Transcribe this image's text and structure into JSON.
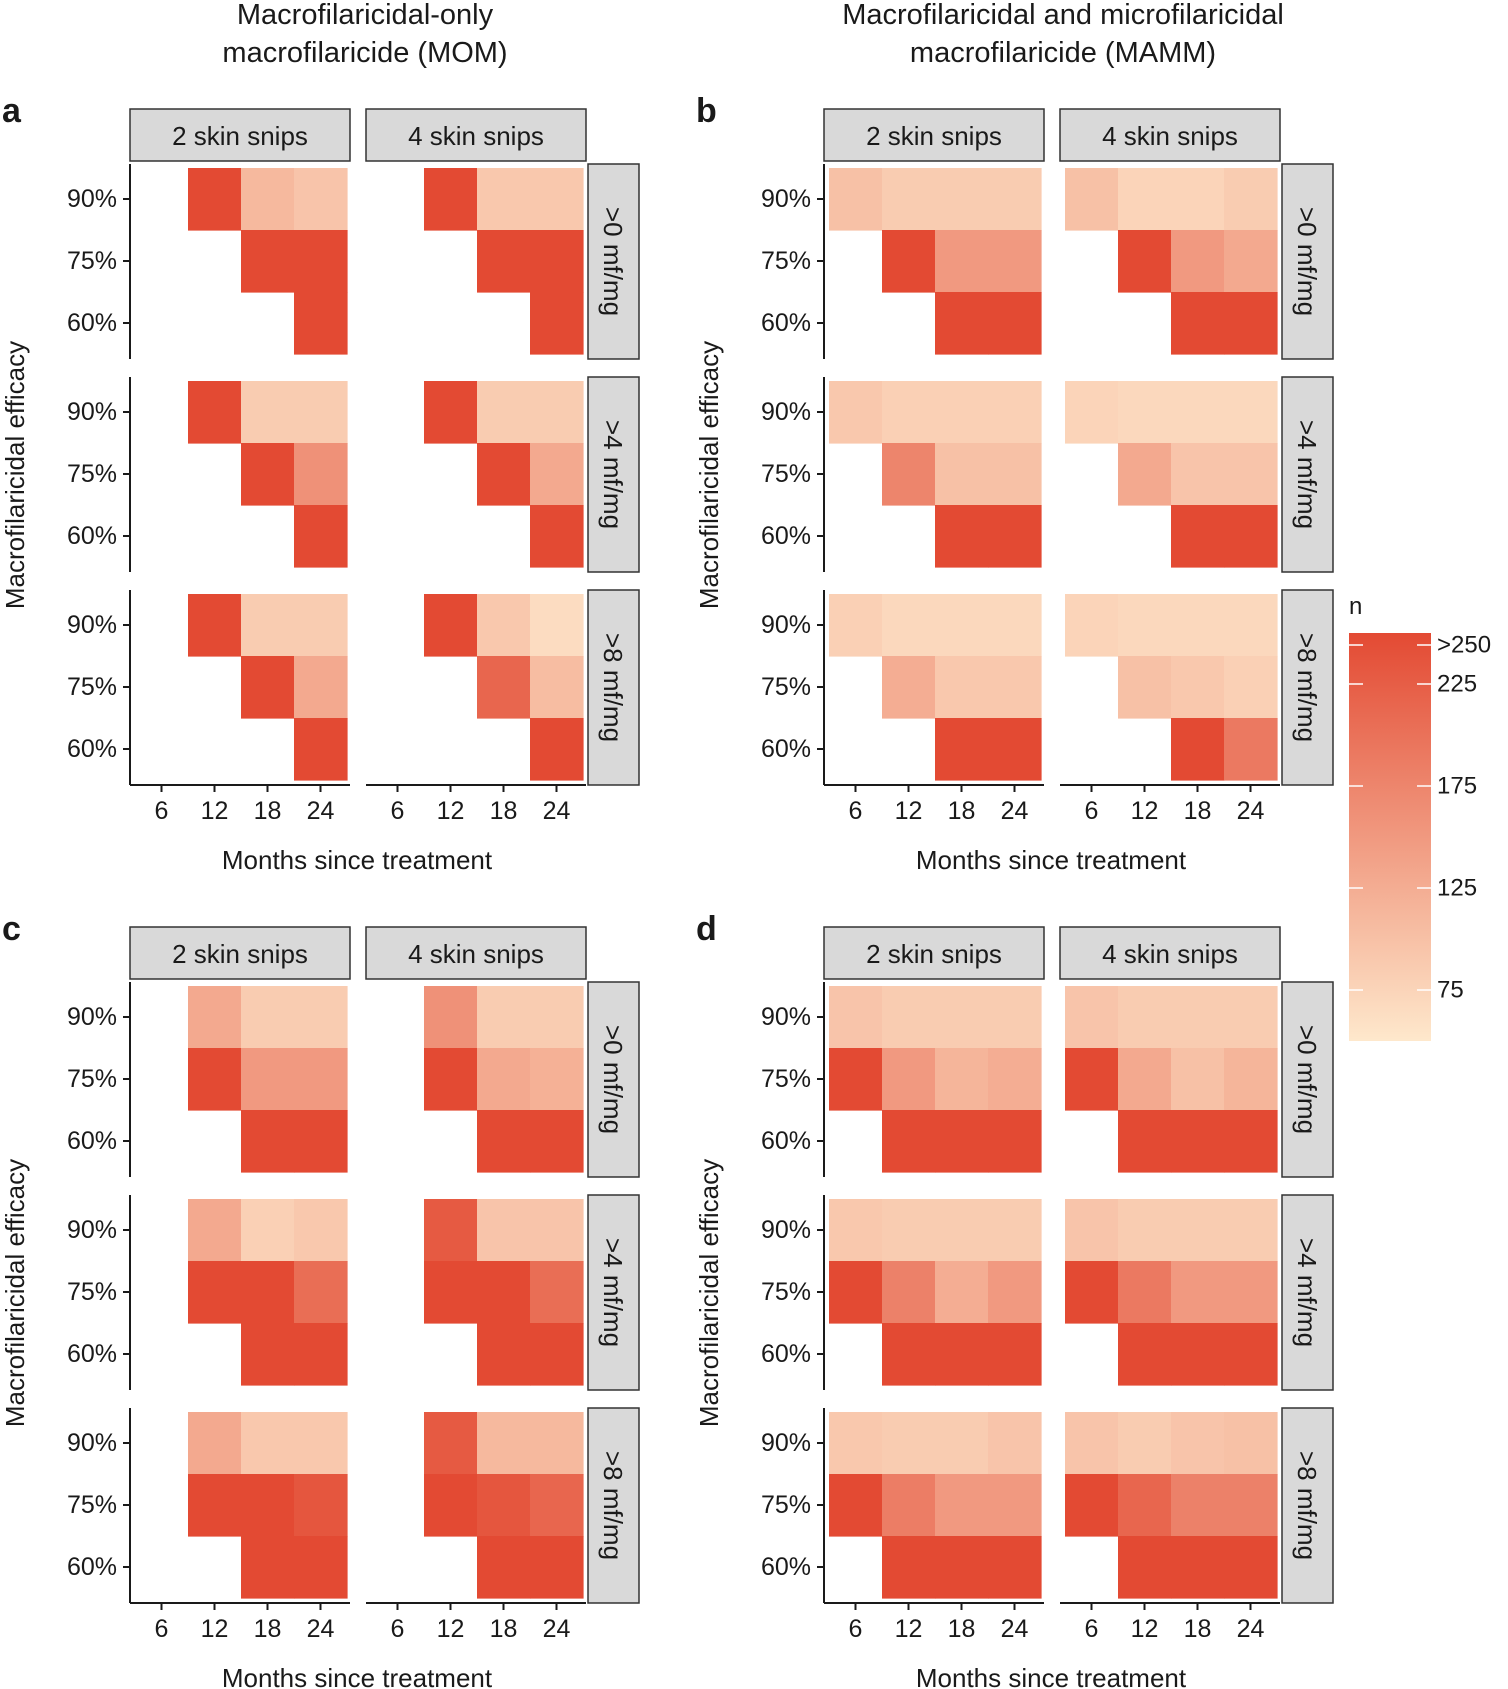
{
  "column_titles": [
    {
      "line1": "Macrofilaricidal-only",
      "line2": "macrofilaricide (MOM)"
    },
    {
      "line1": "Macrofilaricidal and microfilaricidal",
      "line2": "macrofilaricide (MAMM)"
    }
  ],
  "legend": {
    "title": "n",
    "labels": [
      ">250",
      "225",
      "175",
      "125",
      "75"
    ],
    "label_values": [
      250,
      225,
      175,
      125,
      75
    ],
    "range": [
      50,
      250
    ],
    "low_color": "#fee8cc",
    "high_color": "#e34a33"
  },
  "chart_data": [
    {
      "panel": "a",
      "type": "heatmap",
      "column_title": "Macrofilaricidal-only macrofilaricide (MOM)",
      "xlabel": "Months since treatment",
      "ylabel": "Macrofilaricidal efficacy",
      "x_categories": [
        "6",
        "12",
        "18",
        "24"
      ],
      "y_categories": [
        "90%",
        "75%",
        "60%"
      ],
      "facet_columns": [
        "2 skin snips",
        "4 skin snips"
      ],
      "facet_rows": [
        ">0 mf/mg",
        ">4 mf/mg",
        ">8 mf/mg"
      ],
      "value_note": "n (values estimated from colour; null = no cell drawn; 250 = >250)",
      "cells": [
        [
          [
            [
              null,
              250,
              110,
              95
            ],
            [
              null,
              null,
              250,
              250
            ],
            [
              null,
              null,
              null,
              250
            ]
          ],
          [
            [
              null,
              250,
              90,
              90
            ],
            [
              null,
              null,
              250,
              250
            ],
            [
              null,
              null,
              null,
              250
            ]
          ]
        ],
        [
          [
            [
              null,
              250,
              85,
              85
            ],
            [
              null,
              null,
              250,
              160
            ],
            [
              null,
              null,
              null,
              250
            ]
          ],
          [
            [
              null,
              250,
              85,
              85
            ],
            [
              null,
              null,
              250,
              130
            ],
            [
              null,
              null,
              null,
              250
            ]
          ]
        ],
        [
          [
            [
              null,
              250,
              85,
              85
            ],
            [
              null,
              null,
              250,
              130
            ],
            [
              null,
              null,
              null,
              250
            ]
          ],
          [
            [
              null,
              250,
              90,
              65
            ],
            [
              null,
              null,
              215,
              105
            ],
            [
              null,
              null,
              null,
              250
            ]
          ]
        ]
      ]
    },
    {
      "panel": "b",
      "type": "heatmap",
      "column_title": "Macrofilaricidal and microfilaricidal macrofilaricide (MAMM)",
      "xlabel": "Months since treatment",
      "ylabel": "Macrofilaricidal efficacy",
      "x_categories": [
        "6",
        "12",
        "18",
        "24"
      ],
      "y_categories": [
        "90%",
        "75%",
        "60%"
      ],
      "facet_columns": [
        "2 skin snips",
        "4 skin snips"
      ],
      "facet_rows": [
        ">0 mf/mg",
        ">4 mf/mg",
        ">8 mf/mg"
      ],
      "value_note": "n (values estimated from colour; null = no cell drawn; 250 = >250)",
      "cells": [
        [
          [
            [
              100,
              85,
              85,
              85
            ],
            [
              null,
              250,
              150,
              150
            ],
            [
              null,
              null,
              250,
              250
            ]
          ],
          [
            [
              100,
              75,
              75,
              85
            ],
            [
              null,
              250,
              150,
              130
            ],
            [
              null,
              null,
              250,
              250
            ]
          ]
        ],
        [
          [
            [
              90,
              80,
              80,
              80
            ],
            [
              null,
              175,
              100,
              100
            ],
            [
              null,
              null,
              250,
              250
            ]
          ],
          [
            [
              75,
              70,
              70,
              70
            ],
            [
              null,
              130,
              95,
              95
            ],
            [
              null,
              null,
              250,
              250
            ]
          ]
        ],
        [
          [
            [
              80,
              70,
              70,
              70
            ],
            [
              null,
              125,
              90,
              90
            ],
            [
              null,
              null,
              250,
              250
            ]
          ],
          [
            [
              75,
              70,
              70,
              70
            ],
            [
              null,
              100,
              90,
              80
            ],
            [
              null,
              null,
              250,
              190
            ]
          ]
        ]
      ]
    },
    {
      "panel": "c",
      "type": "heatmap",
      "column_title": "Macrofilaricidal-only macrofilaricide (MOM)",
      "xlabel": "Months since treatment",
      "ylabel": "Macrofilaricidal efficacy",
      "x_categories": [
        "6",
        "12",
        "18",
        "24"
      ],
      "y_categories": [
        "90%",
        "75%",
        "60%"
      ],
      "facet_columns": [
        "2 skin snips",
        "4 skin snips"
      ],
      "facet_rows": [
        ">0 mf/mg",
        ">4 mf/mg",
        ">8 mf/mg"
      ],
      "value_note": "n (values estimated from colour; null = no cell drawn; 250 = >250)",
      "cells": [
        [
          [
            [
              null,
              130,
              85,
              85
            ],
            [
              null,
              250,
              150,
              150
            ],
            [
              null,
              null,
              250,
              250
            ]
          ],
          [
            [
              null,
              160,
              85,
              85
            ],
            [
              null,
              250,
              130,
              120
            ],
            [
              null,
              null,
              250,
              250
            ]
          ]
        ],
        [
          [
            [
              null,
              130,
              80,
              90
            ],
            [
              null,
              250,
              250,
              205
            ],
            [
              null,
              null,
              250,
              250
            ]
          ],
          [
            [
              null,
              230,
              95,
              95
            ],
            [
              null,
              250,
              250,
              205
            ],
            [
              null,
              null,
              250,
              250
            ]
          ]
        ],
        [
          [
            [
              null,
              130,
              90,
              90
            ],
            [
              null,
              250,
              250,
              235
            ],
            [
              null,
              null,
              250,
              250
            ]
          ],
          [
            [
              null,
              230,
              110,
              110
            ],
            [
              null,
              250,
              235,
              215
            ],
            [
              null,
              null,
              250,
              250
            ]
          ]
        ]
      ]
    },
    {
      "panel": "d",
      "type": "heatmap",
      "column_title": "Macrofilaricidal and microfilaricidal macrofilaricide (MAMM)",
      "xlabel": "Months since treatment",
      "ylabel": "Macrofilaricidal efficacy",
      "x_categories": [
        "6",
        "12",
        "18",
        "24"
      ],
      "y_categories": [
        "90%",
        "75%",
        "60%"
      ],
      "facet_columns": [
        "2 skin snips",
        "4 skin snips"
      ],
      "facet_rows": [
        ">0 mf/mg",
        ">4 mf/mg",
        ">8 mf/mg"
      ],
      "value_note": "n (values estimated from colour; null = no cell drawn; 250 = >250)",
      "cells": [
        [
          [
            [
              95,
              85,
              85,
              85
            ],
            [
              250,
              150,
              115,
              125
            ],
            [
              null,
              250,
              250,
              250
            ]
          ],
          [
            [
              95,
              85,
              85,
              85
            ],
            [
              250,
              130,
              100,
              115
            ],
            [
              null,
              250,
              250,
              250
            ]
          ]
        ],
        [
          [
            [
              90,
              85,
              85,
              85
            ],
            [
              250,
              180,
              125,
              150
            ],
            [
              null,
              250,
              250,
              250
            ]
          ],
          [
            [
              95,
              85,
              85,
              85
            ],
            [
              250,
              190,
              150,
              150
            ],
            [
              null,
              250,
              250,
              250
            ]
          ]
        ],
        [
          [
            [
              90,
              85,
              85,
              95
            ],
            [
              250,
              185,
              150,
              150
            ],
            [
              null,
              250,
              250,
              250
            ]
          ],
          [
            [
              95,
              85,
              95,
              100
            ],
            [
              250,
              215,
              180,
              180
            ],
            [
              null,
              250,
              250,
              250
            ]
          ]
        ]
      ]
    }
  ]
}
